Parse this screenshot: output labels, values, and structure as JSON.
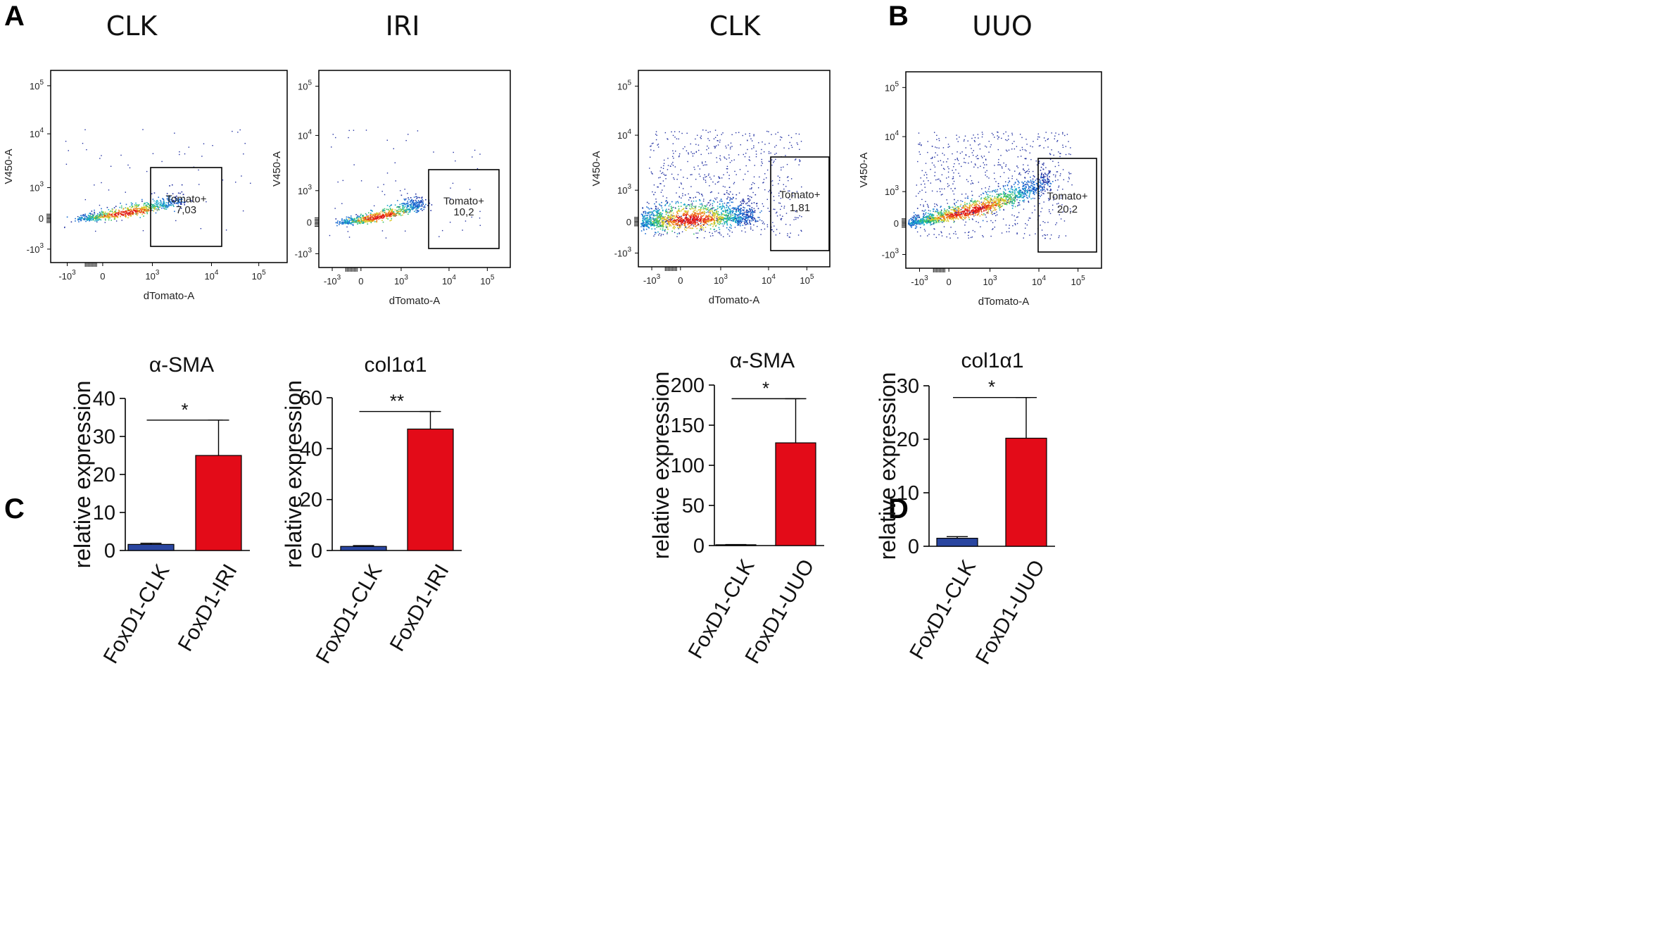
{
  "panel_letters": [
    "A",
    "B",
    "C",
    "D"
  ],
  "chart_data": [
    {
      "type": "scatter",
      "panel": "A",
      "title": "CLK",
      "xlabel": "dTomato-A",
      "ylabel": "V450-A",
      "xticks": [
        "-10^3",
        "0",
        "10^3",
        "10^4",
        "10^5"
      ],
      "yticks": [
        "10^5",
        "10^4",
        "10^3",
        "0",
        "-10^3"
      ],
      "gate": {
        "name": "Tomato+",
        "value": "7,03"
      },
      "distribution": {
        "spread": "narrow",
        "positive_fraction_percent": 7.03
      }
    },
    {
      "type": "scatter",
      "panel": "A",
      "title": "IRI",
      "xlabel": "dTomato-A",
      "ylabel": "V450-A",
      "xticks": [
        "-10^3",
        "0",
        "10^3",
        "10^4",
        "10^5"
      ],
      "yticks": [
        "10^5",
        "10^4",
        "10^3",
        "0",
        "-10^3"
      ],
      "gate": {
        "name": "Tomato+",
        "value": "10,2"
      },
      "distribution": {
        "spread": "narrow",
        "positive_fraction_percent": 10.2
      }
    },
    {
      "type": "scatter",
      "panel": "B",
      "title": "CLK",
      "xlabel": "dTomato-A",
      "ylabel": "V450-A",
      "xticks": [
        "-10^3",
        "0",
        "10^3",
        "10^4",
        "10^5"
      ],
      "yticks": [
        "10^5",
        "10^4",
        "10^3",
        "0",
        "-10^3"
      ],
      "gate": {
        "name": "Tomato+",
        "value": "1,81"
      },
      "distribution": {
        "spread": "wide",
        "positive_fraction_percent": 1.81
      }
    },
    {
      "type": "scatter",
      "panel": "B",
      "title": "UUO",
      "xlabel": "dTomato-A",
      "ylabel": "V450-A",
      "xticks": [
        "-10^3",
        "0",
        "10^3",
        "10^4",
        "10^5"
      ],
      "yticks": [
        "10^5",
        "10^4",
        "10^3",
        "0",
        "-10^3"
      ],
      "gate": {
        "name": "Tomato+",
        "value": "20,2"
      },
      "distribution": {
        "spread": "wide",
        "positive_fraction_percent": 20.2
      }
    },
    {
      "type": "bar",
      "panel": "C",
      "title": "α-SMA",
      "ylabel": "relative expression",
      "categories": [
        "FoxD1-CLK",
        "FoxD1-IRI"
      ],
      "values": [
        1.6,
        25
      ],
      "errors": [
        0.3,
        9.3
      ],
      "ylim": [
        0,
        40
      ],
      "yticks": [
        0,
        10,
        20,
        30,
        40
      ],
      "colors": [
        "#2a46a0",
        "#e30b18"
      ],
      "significance": "*"
    },
    {
      "type": "bar",
      "panel": "C",
      "title": "col1α1",
      "ylabel": "relative expression",
      "categories": [
        "FoxD1-CLK",
        "FoxD1-IRI"
      ],
      "values": [
        1.6,
        47.7
      ],
      "errors": [
        0.3,
        6.9
      ],
      "ylim": [
        0,
        60
      ],
      "yticks": [
        0,
        20,
        40,
        60
      ],
      "colors": [
        "#2a46a0",
        "#e30b18"
      ],
      "significance": "**"
    },
    {
      "type": "bar",
      "panel": "D",
      "title": "α-SMA",
      "ylabel": "relative expression",
      "categories": [
        "FoxD1-CLK",
        "FoxD1-UUO"
      ],
      "values": [
        1,
        128
      ],
      "errors": [
        0.3,
        55
      ],
      "ylim": [
        0,
        200
      ],
      "yticks": [
        0,
        50,
        100,
        150,
        200
      ],
      "colors": [
        "#2a46a0",
        "#e30b18"
      ],
      "significance": "*"
    },
    {
      "type": "bar",
      "panel": "D",
      "title": "col1α1",
      "ylabel": "relative expression",
      "categories": [
        "FoxD1-CLK",
        "FoxD1-UUO"
      ],
      "values": [
        1.5,
        20.2
      ],
      "errors": [
        0.3,
        7.6
      ],
      "ylim": [
        0,
        30
      ],
      "yticks": [
        0,
        10,
        20,
        30
      ],
      "colors": [
        "#2a46a0",
        "#e30b18"
      ],
      "significance": "*"
    }
  ]
}
